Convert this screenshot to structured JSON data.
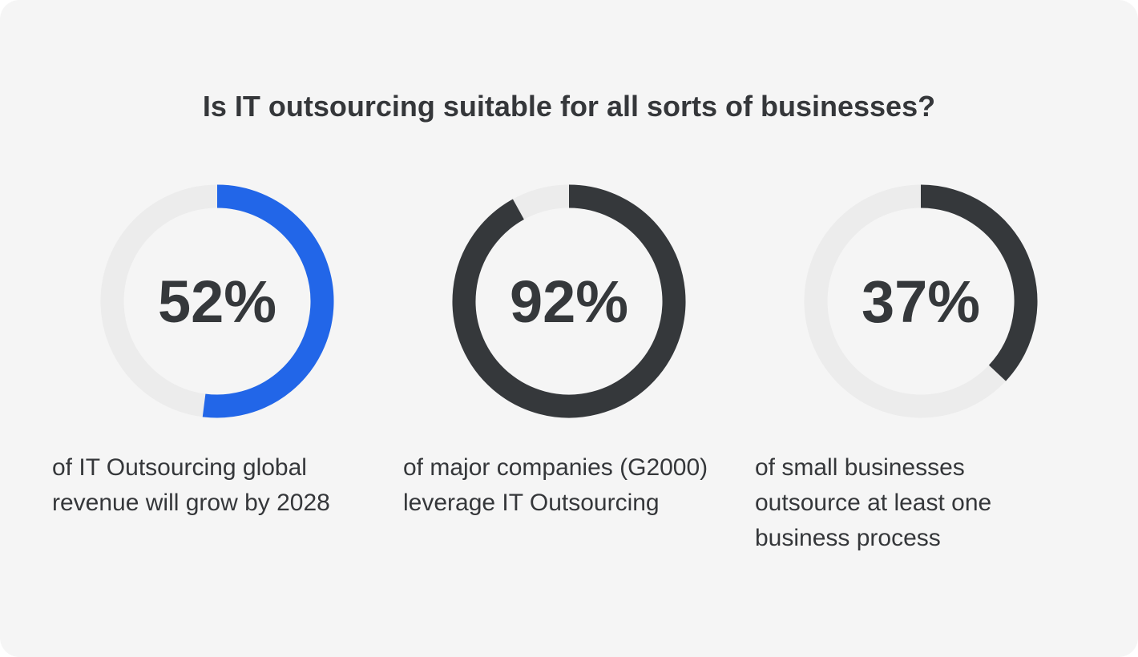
{
  "title": "Is IT outsourcing suitable for all sorts of businesses?",
  "colors": {
    "track": "#ececec",
    "blue": "#2266e8",
    "dark": "#35383b",
    "text": "#35373a"
  },
  "chart_data": [
    {
      "type": "pie",
      "style": "donut",
      "value": 52,
      "label": "52%",
      "color": "#2266e8",
      "description": [
        "of IT Outsourcing global",
        "revenue will grow by 2028"
      ]
    },
    {
      "type": "pie",
      "style": "donut",
      "value": 92,
      "label": "92%",
      "color": "#35383b",
      "description": [
        "of major companies (G2000)",
        "leverage IT Outsourcing"
      ]
    },
    {
      "type": "pie",
      "style": "donut",
      "value": 37,
      "label": "37%",
      "color": "#35383b",
      "description": [
        "of small businesses",
        "outsource at least one",
        "business process"
      ]
    }
  ]
}
